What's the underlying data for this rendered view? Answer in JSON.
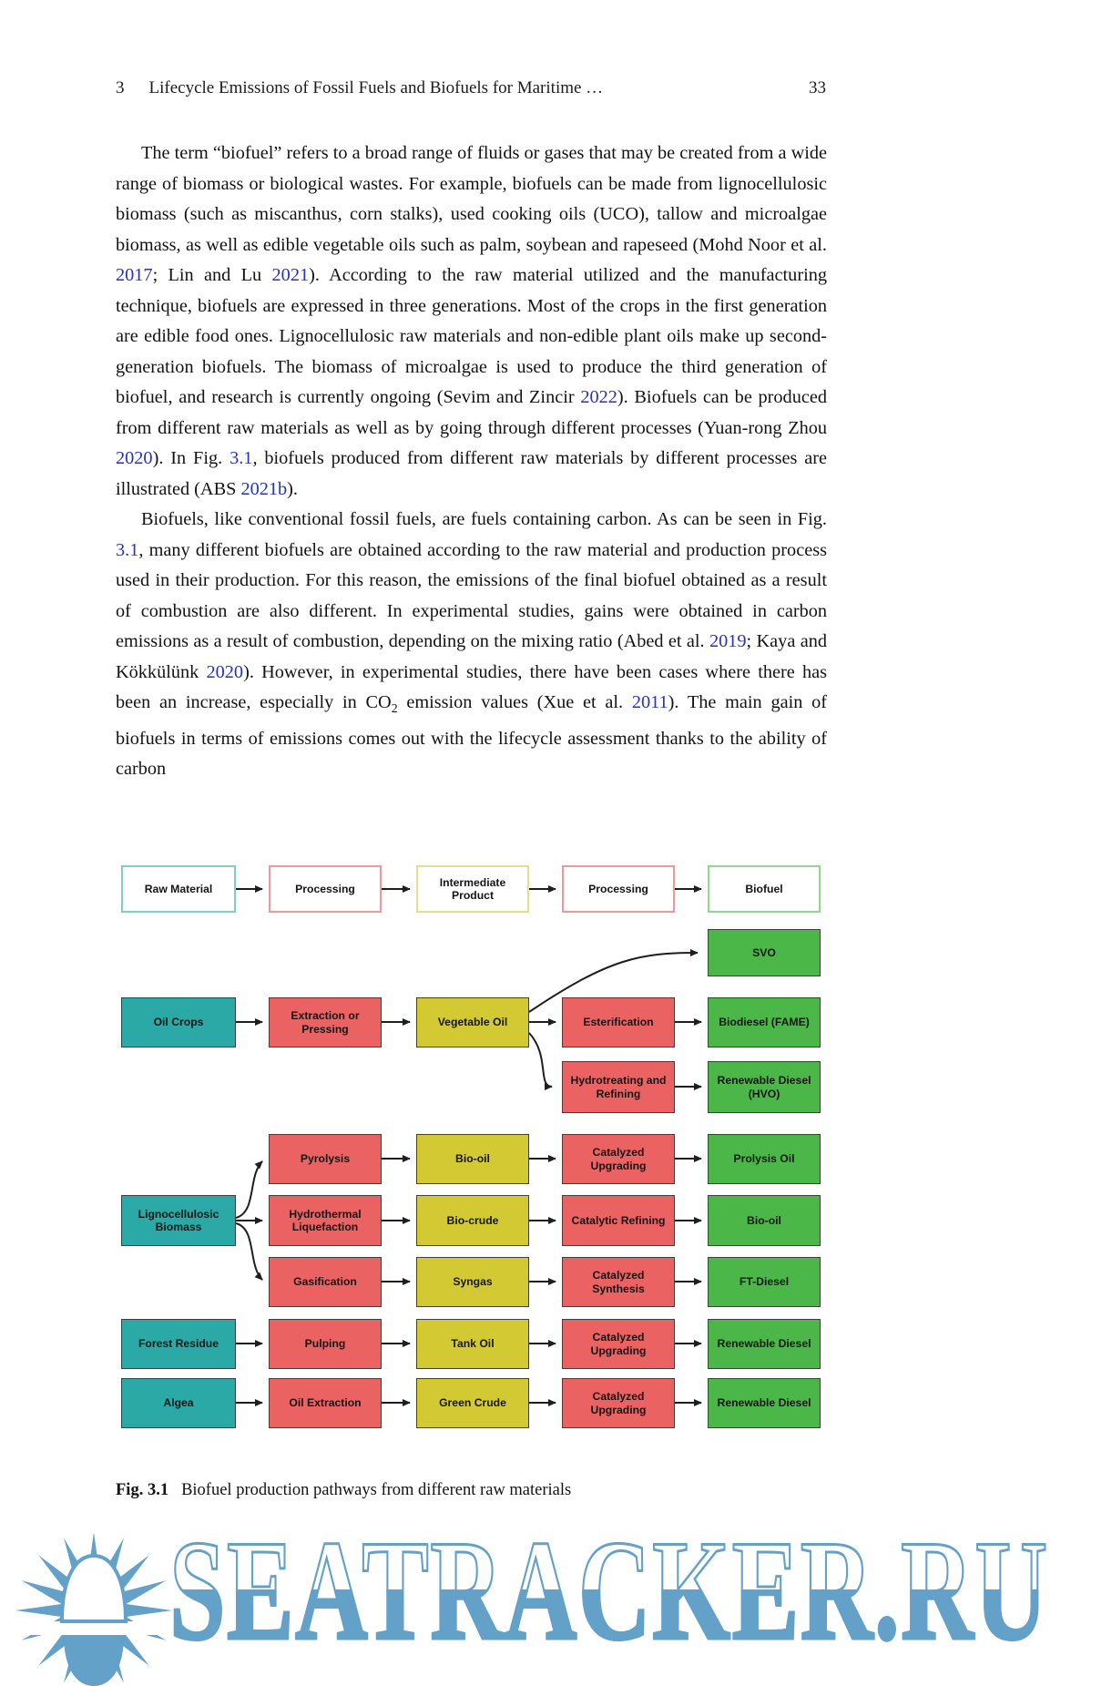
{
  "header": {
    "chapter_number": "3",
    "title": "Lifecycle Emissions of Fossil Fuels and Biofuels for Maritime …",
    "page_number": "33"
  },
  "paragraphs": [
    {
      "segments": [
        {
          "t": "The term “biofuel” refers to a broad range of fluids or gases that may be created from a wide range of biomass or biological wastes. For example, biofuels can be made from lignocellulosic biomass (such as miscanthus, corn stalks), used cooking oils (UCO), tallow and microalgae biomass, as well as edible vegetable oils such as palm, soybean and rapeseed (Mohd Noor et al. "
        },
        {
          "t": "2017",
          "link": true
        },
        {
          "t": "; Lin and Lu "
        },
        {
          "t": "2021",
          "link": true
        },
        {
          "t": "). According to the raw material utilized and the manufacturing technique, biofuels are expressed in three generations. Most of the crops in the first generation are edible food ones. Lignocellulosic raw materials and non-edible plant oils make up second-generation biofuels. The biomass of microalgae is used to produce the third generation of biofuel, and research is currently ongoing (Sevim and Zincir "
        },
        {
          "t": "2022",
          "link": true
        },
        {
          "t": "). Biofuels can be produced from different raw materials as well as by going through different processes (Yuan-rong Zhou "
        },
        {
          "t": "2020",
          "link": true
        },
        {
          "t": "). In Fig. "
        },
        {
          "t": "3.1",
          "link": true
        },
        {
          "t": ", biofuels produced from different raw materials by different processes are illustrated (ABS "
        },
        {
          "t": "2021b",
          "link": true
        },
        {
          "t": ")."
        }
      ]
    },
    {
      "segments": [
        {
          "t": "Biofuels, like conventional fossil fuels, are fuels containing carbon. As can be seen in Fig. "
        },
        {
          "t": "3.1",
          "link": true
        },
        {
          "t": ", many different biofuels are obtained according to the raw material and production process used in their production. For this reason, the emissions of the final biofuel obtained as a result of combustion are also different. In experimental studies, gains were obtained in carbon emissions as a result of combustion, depending on the mixing ratio (Abed et al. "
        },
        {
          "t": "2019",
          "link": true
        },
        {
          "t": "; Kaya and Kökkülünk "
        },
        {
          "t": "2020",
          "link": true
        },
        {
          "t": "). However, in experimental studies, there have been cases where there has been an increase, especially in CO"
        },
        {
          "t": "2",
          "sub": true
        },
        {
          "t": " emission values (Xue et al. "
        },
        {
          "t": "2011",
          "link": true
        },
        {
          "t": "). The main gain of biofuels in terms of emissions comes out with the lifecycle assessment thanks to the ability of carbon"
        }
      ]
    }
  ],
  "figure": {
    "caption_label": "Fig. 3.1",
    "caption_text": "Biofuel production pathways from different raw materials",
    "legend": {
      "raw_material": "Raw Material",
      "processing_1": "Processing",
      "intermediate_product": "Intermediate Product",
      "processing_2": "Processing",
      "biofuel": "Biofuel"
    },
    "boxes": {
      "svo": "SVO",
      "oil_crops": "Oil Crops",
      "extraction_or_pressing": "Extraction or Pressing",
      "vegetable_oil": "Vegetable Oil",
      "esterification": "Esterification",
      "biodiesel_fame": "Biodiesel (FAME)",
      "hydrotreating_and_refining": "Hydrotreating and Refining",
      "renewable_diesel_hvo": "Renewable Diesel (HVO)",
      "pyrolysis": "Pyrolysis",
      "bio_oil_intermediate": "Bio-oil",
      "catalyzed_upgrading_1": "Catalyzed Upgrading",
      "prolysis_oil": "Prolysis Oil",
      "lignocellulosic_biomass": "Lignocellulosic Biomass",
      "hydrothermal_liquefaction": "Hydrothermal Liquefaction",
      "bio_crude": "Bio-crude",
      "catalytic_refining": "Catalytic Refining",
      "bio_oil_fuel": "Bio-oil",
      "gasification": "Gasification",
      "syngas": "Syngas",
      "catalyzed_synthesis": "Catalyzed Synthesis",
      "ft_diesel": "FT-Diesel",
      "forest_residue": "Forest Residue",
      "pulping": "Pulping",
      "tank_oil": "Tank Oil",
      "catalyzed_upgrading_2": "Catalyzed Upgrading",
      "renewable_diesel_1": "Renewable Diesel",
      "algea": "Algea",
      "oil_extraction": "Oil Extraction",
      "green_crude": "Green Crude",
      "catalyzed_upgrading_3": "Catalyzed Upgrading",
      "renewable_diesel_2": "Renewable Diesel"
    },
    "edges": [
      [
        "raw_material",
        "processing_1"
      ],
      [
        "processing_1",
        "intermediate_product"
      ],
      [
        "intermediate_product",
        "processing_2"
      ],
      [
        "processing_2",
        "biofuel"
      ],
      [
        "oil_crops",
        "extraction_or_pressing"
      ],
      [
        "extraction_or_pressing",
        "vegetable_oil"
      ],
      [
        "vegetable_oil",
        "svo"
      ],
      [
        "vegetable_oil",
        "esterification"
      ],
      [
        "vegetable_oil",
        "hydrotreating_and_refining"
      ],
      [
        "esterification",
        "biodiesel_fame"
      ],
      [
        "hydrotreating_and_refining",
        "renewable_diesel_hvo"
      ],
      [
        "lignocellulosic_biomass",
        "pyrolysis"
      ],
      [
        "lignocellulosic_biomass",
        "hydrothermal_liquefaction"
      ],
      [
        "lignocellulosic_biomass",
        "gasification"
      ],
      [
        "pyrolysis",
        "bio_oil_intermediate"
      ],
      [
        "bio_oil_intermediate",
        "catalyzed_upgrading_1"
      ],
      [
        "catalyzed_upgrading_1",
        "prolysis_oil"
      ],
      [
        "hydrothermal_liquefaction",
        "bio_crude"
      ],
      [
        "bio_crude",
        "catalytic_refining"
      ],
      [
        "catalytic_refining",
        "bio_oil_fuel"
      ],
      [
        "gasification",
        "syngas"
      ],
      [
        "syngas",
        "catalyzed_synthesis"
      ],
      [
        "catalyzed_synthesis",
        "ft_diesel"
      ],
      [
        "forest_residue",
        "pulping"
      ],
      [
        "pulping",
        "tank_oil"
      ],
      [
        "tank_oil",
        "catalyzed_upgrading_2"
      ],
      [
        "catalyzed_upgrading_2",
        "renewable_diesel_1"
      ],
      [
        "algea",
        "oil_extraction"
      ],
      [
        "oil_extraction",
        "green_crude"
      ],
      [
        "green_crude",
        "catalyzed_upgrading_3"
      ],
      [
        "catalyzed_upgrading_3",
        "renewable_diesel_2"
      ]
    ],
    "colors": {
      "raw_material_fill": "#2aa9a6",
      "process_fill": "#ea6262",
      "intermediate_fill": "#d2c933",
      "biofuel_fill": "#4bb748"
    }
  },
  "citation_color": "#2533bf",
  "watermark": {
    "text": "SEATRACKER.RU",
    "color": "#63a1c8"
  }
}
